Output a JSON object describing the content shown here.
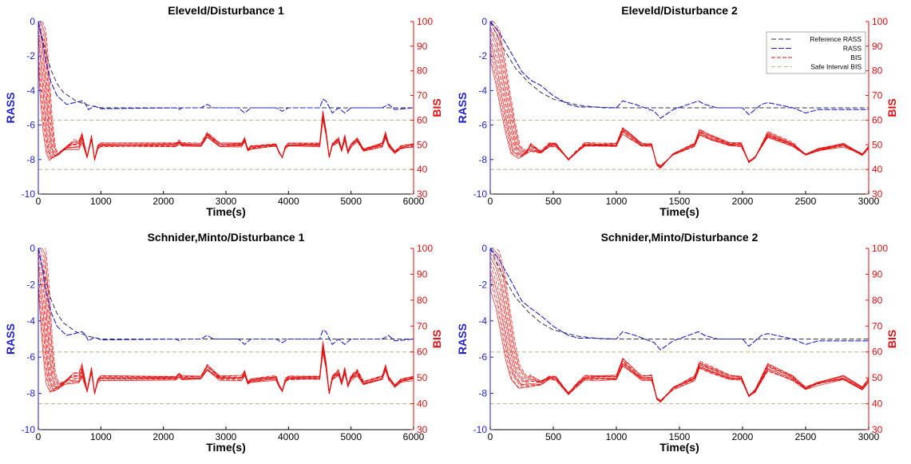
{
  "colors": {
    "rass": "#1f1fcf",
    "reference": "#333355",
    "bis": "#e01010",
    "safe": "#c8b88a",
    "axis": "#000000"
  },
  "legend": {
    "placement": "top-right of panel 2",
    "entries": [
      "Reference RASS",
      "RASS",
      "BIS",
      "Safe Interval BIS"
    ]
  },
  "chart_data": [
    {
      "type": "line",
      "title": "Eleveld/Disturbance 1",
      "xlabel": "Time(s)",
      "ylabel_left": "RASS",
      "ylabel_right": "BIS",
      "xlim": [
        0,
        6000
      ],
      "ylim_left": [
        -10,
        0
      ],
      "ylim_right": [
        30,
        100
      ],
      "xticks": [
        0,
        1000,
        2000,
        3000,
        4000,
        5000,
        6000
      ],
      "yticks_left": [
        0,
        -2,
        -4,
        -6,
        -8,
        -10
      ],
      "yticks_right": [
        100,
        90,
        80,
        70,
        60,
        50,
        40,
        30
      ],
      "safe_interval_bis": [
        40,
        60
      ],
      "reference_rass": {
        "x": [
          0,
          100,
          200,
          300,
          400,
          600,
          800,
          1000,
          6000
        ],
        "y": [
          0,
          -1.5,
          -2.8,
          -3.6,
          -4.1,
          -4.6,
          -4.85,
          -5,
          -5
        ]
      },
      "rass": {
        "x": [
          0,
          60,
          120,
          200,
          300,
          450,
          700,
          750,
          800,
          900,
          1000,
          2200,
          2250,
          2300,
          2600,
          2700,
          2800,
          3200,
          3300,
          3400,
          3800,
          3900,
          4000,
          4500,
          4550,
          4600,
          4700,
          4800,
          4900,
          5000,
          5500,
          5600,
          5700,
          6000
        ],
        "y": [
          0,
          -1.0,
          -2.3,
          -3.5,
          -4.3,
          -4.8,
          -4.6,
          -4.75,
          -5.1,
          -4.9,
          -5.05,
          -5.0,
          -5.1,
          -5.0,
          -5.0,
          -4.8,
          -5.0,
          -5.0,
          -5.3,
          -5.0,
          -5.0,
          -5.2,
          -5.0,
          -5.0,
          -4.5,
          -4.6,
          -5.3,
          -5.0,
          -5.3,
          -5.0,
          -5.0,
          -4.8,
          -5.1,
          -5.0
        ]
      },
      "bis": {
        "x": [
          0,
          50,
          100,
          150,
          200,
          250,
          350,
          500,
          650,
          700,
          780,
          850,
          900,
          950,
          1000,
          2200,
          2250,
          2300,
          2600,
          2700,
          2900,
          3250,
          3300,
          3350,
          3400,
          3800,
          3850,
          3900,
          3950,
          4000,
          4500,
          4550,
          4600,
          4650,
          4700,
          4800,
          4850,
          4900,
          4950,
          5000,
          5100,
          5200,
          5500,
          5550,
          5600,
          5700,
          5800,
          6000
        ],
        "y": [
          97,
          90,
          75,
          58,
          48,
          45,
          47,
          50,
          50,
          53,
          45,
          53,
          44,
          49,
          50,
          50,
          51,
          50,
          50,
          54,
          50,
          50,
          52,
          48,
          49,
          50,
          47,
          45,
          49,
          50,
          50,
          62,
          55,
          45,
          50,
          52,
          48,
          53,
          47,
          50,
          52,
          48,
          50,
          54,
          50,
          47,
          49,
          50
        ]
      },
      "bis_band": 5
    },
    {
      "type": "line",
      "title": "Eleveld/Disturbance 2",
      "xlabel": "Time(s)",
      "ylabel_left": "RASS",
      "ylabel_right": "BIS",
      "xlim": [
        0,
        3000
      ],
      "ylim_left": [
        -10,
        0
      ],
      "ylim_right": [
        30,
        100
      ],
      "xticks": [
        0,
        500,
        1000,
        1500,
        2000,
        2500,
        3000
      ],
      "yticks_left": [
        0,
        -2,
        -4,
        -6,
        -8,
        -10
      ],
      "yticks_right": [
        100,
        90,
        80,
        70,
        60,
        50,
        40,
        30
      ],
      "safe_interval_bis": [
        40,
        60
      ],
      "reference_rass": {
        "x": [
          0,
          100,
          200,
          300,
          400,
          500,
          700,
          900,
          3000
        ],
        "y": [
          0,
          -1.5,
          -2.7,
          -3.5,
          -4.1,
          -4.5,
          -4.85,
          -5,
          -5
        ]
      },
      "rass": {
        "x": [
          0,
          60,
          150,
          250,
          320,
          400,
          500,
          620,
          700,
          800,
          1000,
          1050,
          1150,
          1300,
          1350,
          1450,
          1650,
          1700,
          1800,
          2000,
          2050,
          2150,
          2200,
          2400,
          2500,
          2600,
          3000
        ],
        "y": [
          0,
          -0.5,
          -1.6,
          -2.9,
          -3.4,
          -3.7,
          -4.3,
          -4.8,
          -4.95,
          -4.95,
          -5.0,
          -4.6,
          -4.8,
          -5.2,
          -5.6,
          -5.1,
          -4.6,
          -4.8,
          -5.0,
          -5.0,
          -5.4,
          -4.8,
          -4.7,
          -5.0,
          -5.3,
          -5.1,
          -5.1
        ]
      },
      "bis": {
        "x": [
          0,
          40,
          80,
          120,
          160,
          200,
          260,
          320,
          400,
          470,
          520,
          620,
          680,
          750,
          850,
          1000,
          1050,
          1100,
          1200,
          1280,
          1320,
          1350,
          1450,
          1620,
          1660,
          1750,
          1900,
          1990,
          2050,
          2100,
          2200,
          2400,
          2500,
          2600,
          2800,
          2950,
          3000
        ],
        "y": [
          95,
          90,
          80,
          68,
          57,
          48,
          46,
          49,
          47,
          50,
          50,
          44,
          47,
          50,
          50,
          50,
          56,
          54,
          50,
          50,
          42,
          41,
          46,
          50,
          55,
          53,
          50,
          50,
          43,
          45,
          54,
          50,
          46,
          48,
          50,
          46,
          49
        ]
      },
      "bis_band": 5
    },
    {
      "type": "line",
      "title": "Schnider,Minto/Disturbance 1",
      "xlabel": "Time(s)",
      "ylabel_left": "RASS",
      "ylabel_right": "BIS",
      "xlim": [
        0,
        6000
      ],
      "ylim_left": [
        -10,
        0
      ],
      "ylim_right": [
        30,
        100
      ],
      "xticks": [
        0,
        1000,
        2000,
        3000,
        4000,
        5000,
        6000
      ],
      "yticks_left": [
        0,
        -2,
        -4,
        -6,
        -8,
        -10
      ],
      "yticks_right": [
        100,
        90,
        80,
        70,
        60,
        50,
        40,
        30
      ],
      "safe_interval_bis": [
        40,
        60
      ],
      "reference_rass": {
        "x": [
          0,
          100,
          200,
          300,
          400,
          600,
          800,
          1000,
          6000
        ],
        "y": [
          0,
          -1.5,
          -2.8,
          -3.6,
          -4.1,
          -4.6,
          -4.85,
          -5,
          -5
        ]
      },
      "rass": {
        "x": [
          0,
          60,
          120,
          200,
          300,
          450,
          700,
          750,
          800,
          900,
          1000,
          2200,
          2250,
          2300,
          2600,
          2700,
          2800,
          3200,
          3300,
          3400,
          3800,
          3900,
          4000,
          4500,
          4550,
          4600,
          4700,
          4800,
          4900,
          5000,
          5500,
          5600,
          5700,
          6000
        ],
        "y": [
          0,
          -1.0,
          -2.3,
          -3.5,
          -4.3,
          -4.8,
          -4.6,
          -4.75,
          -5.1,
          -4.9,
          -5.05,
          -5.0,
          -5.1,
          -5.0,
          -5.0,
          -4.8,
          -5.0,
          -5.0,
          -5.3,
          -5.0,
          -5.0,
          -5.2,
          -5.0,
          -5.0,
          -4.5,
          -4.6,
          -5.3,
          -5.0,
          -5.3,
          -5.0,
          -5.0,
          -4.8,
          -5.1,
          -5.0
        ]
      },
      "bis": {
        "x": [
          0,
          50,
          100,
          150,
          200,
          260,
          350,
          500,
          650,
          700,
          780,
          850,
          900,
          950,
          1000,
          2200,
          2250,
          2300,
          2600,
          2700,
          2900,
          3250,
          3300,
          3350,
          3400,
          3800,
          3850,
          3900,
          3950,
          4000,
          4500,
          4550,
          4600,
          4650,
          4700,
          4800,
          4850,
          4900,
          4950,
          5000,
          5100,
          5200,
          5500,
          5550,
          5600,
          5700,
          5800,
          6000
        ],
        "y": [
          97,
          92,
          80,
          62,
          50,
          46,
          47,
          50,
          50,
          53,
          45,
          53,
          44,
          49,
          50,
          50,
          51,
          50,
          50,
          54,
          50,
          50,
          52,
          48,
          49,
          50,
          47,
          45,
          49,
          50,
          50,
          62,
          55,
          44,
          50,
          52,
          48,
          53,
          47,
          50,
          52,
          48,
          50,
          54,
          50,
          47,
          49,
          50
        ]
      },
      "bis_band": 6
    },
    {
      "type": "line",
      "title": "Schnider,Minto/Disturbance 2",
      "xlabel": "Time(s)",
      "ylabel_left": "RASS",
      "ylabel_right": "BIS",
      "xlim": [
        0,
        3000
      ],
      "ylim_left": [
        -10,
        0
      ],
      "ylim_right": [
        30,
        100
      ],
      "xticks": [
        0,
        500,
        1000,
        1500,
        2000,
        2500,
        3000
      ],
      "yticks_left": [
        0,
        -2,
        -4,
        -6,
        -8,
        -10
      ],
      "yticks_right": [
        100,
        90,
        80,
        70,
        60,
        50,
        40,
        30
      ],
      "safe_interval_bis": [
        40,
        60
      ],
      "reference_rass": {
        "x": [
          0,
          100,
          200,
          300,
          400,
          500,
          700,
          900,
          3000
        ],
        "y": [
          0,
          -1.5,
          -2.7,
          -3.5,
          -4.1,
          -4.5,
          -4.85,
          -5,
          -5
        ]
      },
      "rass": {
        "x": [
          0,
          60,
          150,
          250,
          320,
          400,
          500,
          620,
          700,
          800,
          1000,
          1050,
          1150,
          1300,
          1350,
          1450,
          1650,
          1700,
          1800,
          2000,
          2050,
          2150,
          2200,
          2400,
          2500,
          2600,
          3000
        ],
        "y": [
          0,
          -0.5,
          -1.6,
          -2.9,
          -3.3,
          -3.7,
          -4.3,
          -4.8,
          -4.95,
          -4.95,
          -5.0,
          -4.6,
          -4.8,
          -5.2,
          -5.6,
          -5.1,
          -4.6,
          -4.8,
          -5.0,
          -5.0,
          -5.4,
          -4.8,
          -4.7,
          -5.0,
          -5.3,
          -5.1,
          -5.1
        ]
      },
      "bis": {
        "x": [
          0,
          40,
          80,
          120,
          160,
          200,
          260,
          320,
          400,
          470,
          520,
          620,
          680,
          750,
          850,
          1000,
          1050,
          1100,
          1200,
          1280,
          1320,
          1350,
          1450,
          1620,
          1660,
          1750,
          1900,
          1990,
          2050,
          2100,
          2200,
          2400,
          2500,
          2600,
          2800,
          2950,
          3000
        ],
        "y": [
          95,
          91,
          84,
          72,
          60,
          52,
          48,
          49,
          48,
          50,
          50,
          44,
          47,
          50,
          50,
          50,
          56,
          54,
          50,
          50,
          42,
          41,
          46,
          50,
          55,
          53,
          50,
          50,
          43,
          45,
          54,
          50,
          46,
          48,
          50,
          46,
          49
        ]
      },
      "bis_band": 7
    }
  ]
}
